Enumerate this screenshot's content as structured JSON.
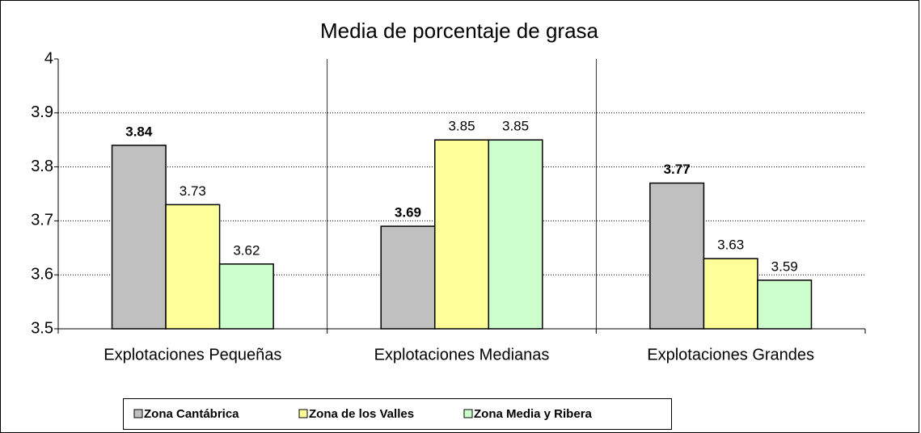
{
  "chart_data": {
    "type": "bar",
    "title": "Media de porcentaje de grasa",
    "categories": [
      "Explotaciones Pequeñas",
      "Explotaciones Medianas",
      "Explotaciones Grandes"
    ],
    "series": [
      {
        "name": "Zona Cantábrica",
        "color": "#c0c0c0",
        "values": [
          3.84,
          3.69,
          3.77
        ]
      },
      {
        "name": "Zona de los Valles",
        "color": "#ffff99",
        "values": [
          3.73,
          3.85,
          3.63
        ]
      },
      {
        "name": "Zona Media y Ribera",
        "color": "#ccffcc",
        "values": [
          3.62,
          3.85,
          3.59
        ]
      }
    ],
    "ylim": [
      3.5,
      4
    ],
    "yticks": [
      3.5,
      3.6,
      3.7,
      3.8,
      3.9,
      4
    ],
    "grid": true,
    "legend": "bottom"
  }
}
